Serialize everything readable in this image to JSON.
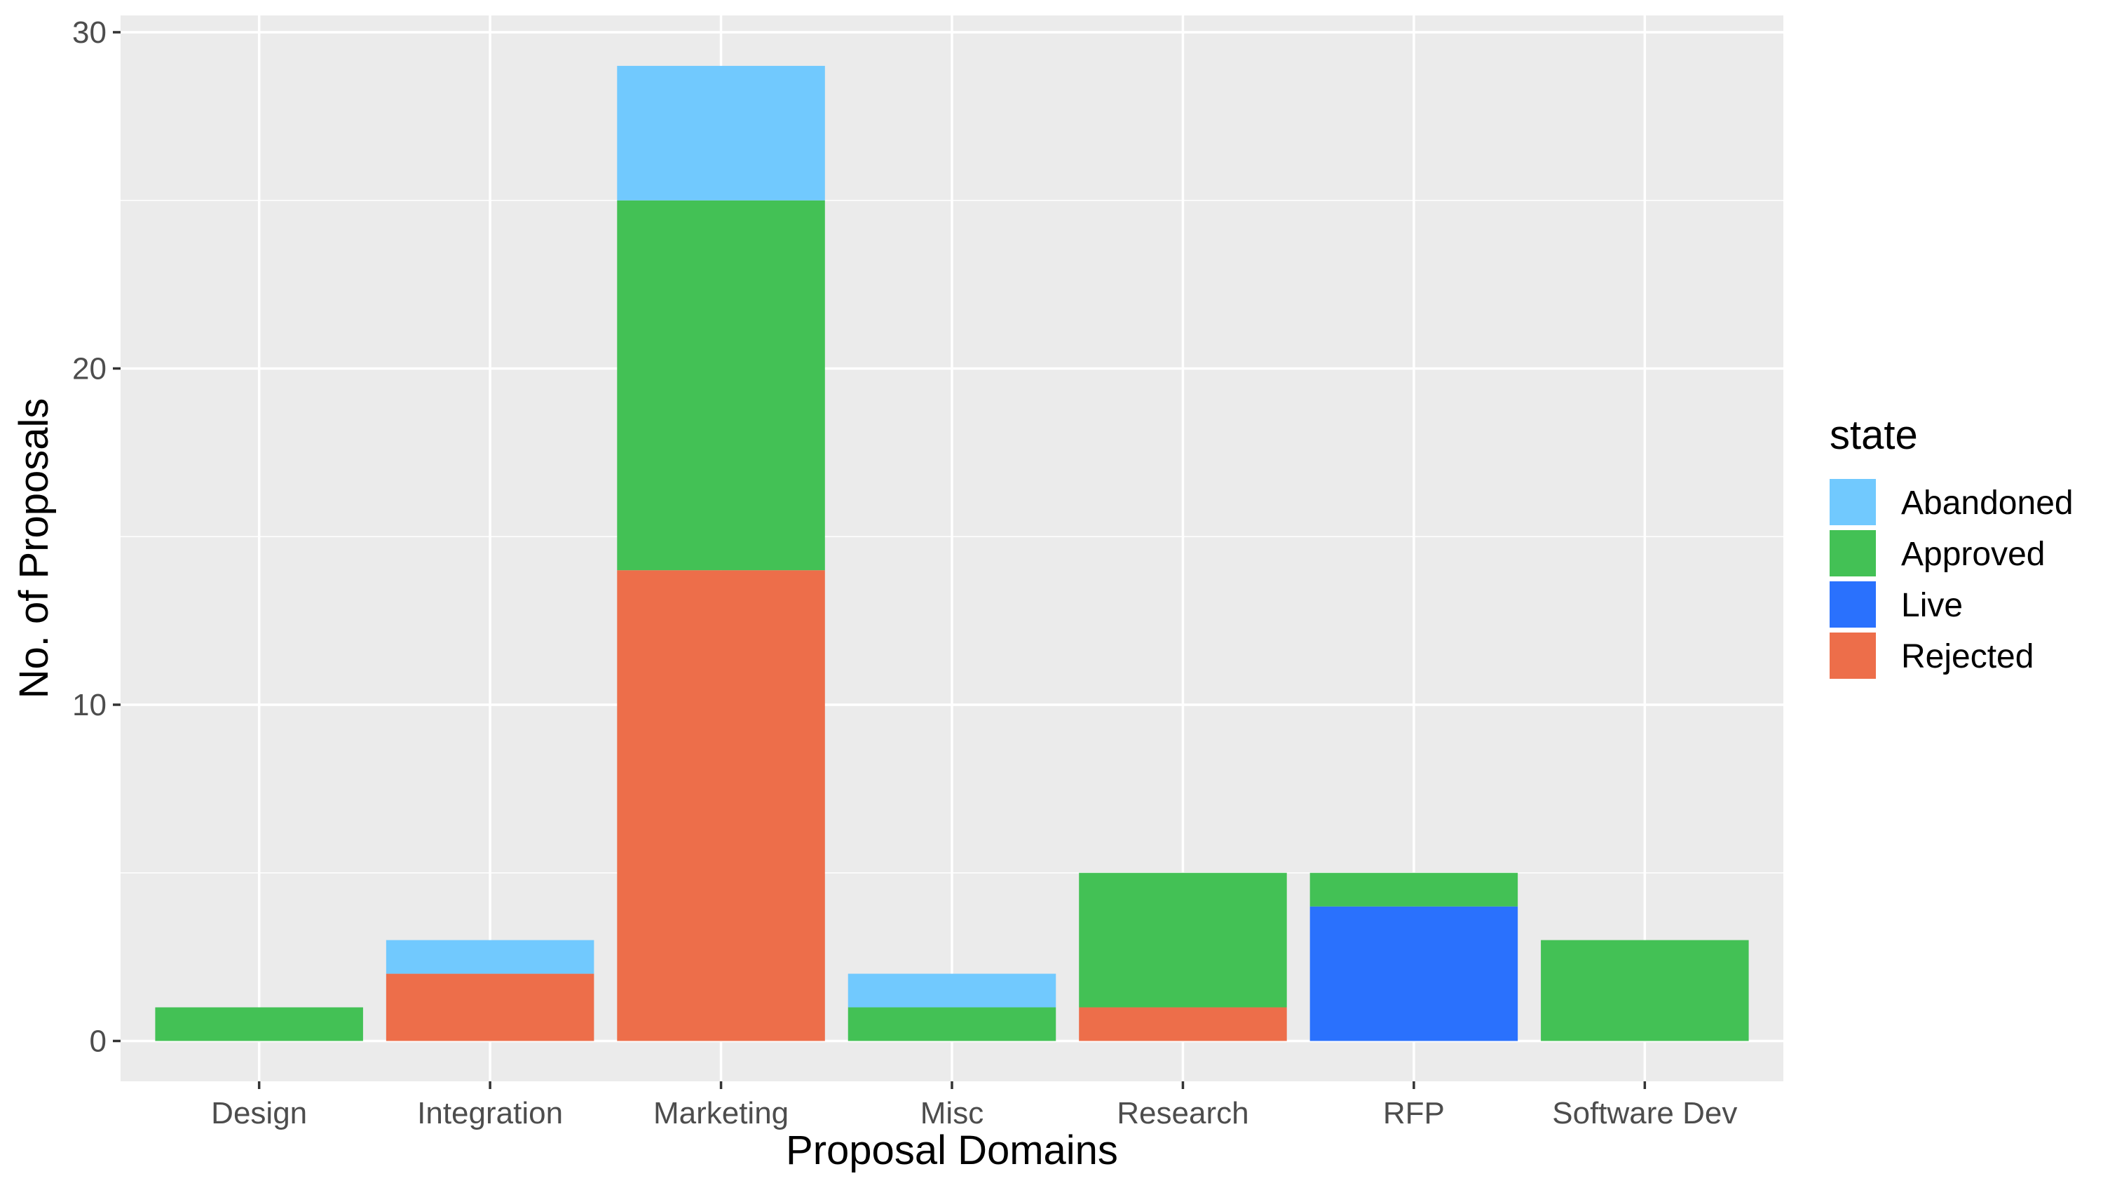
{
  "chart_data": {
    "type": "bar",
    "stacked": true,
    "xlabel": "Proposal Domains",
    "ylabel": "No. of Proposals",
    "ylim": [
      -1.2,
      30.5
    ],
    "yticks": [
      "0",
      "10",
      "20",
      "30"
    ],
    "categories": [
      "Design",
      "Integration",
      "Marketing",
      "Misc",
      "Research",
      "RFP",
      "Software Dev"
    ],
    "series": [
      {
        "name": "Rejected",
        "color": "#ed6e4a",
        "values": [
          0,
          2,
          14,
          0,
          1,
          0,
          0
        ]
      },
      {
        "name": "Live",
        "color": "#2a71fd",
        "values": [
          0,
          0,
          0,
          0,
          0,
          4,
          0
        ]
      },
      {
        "name": "Approved",
        "color": "#43c155",
        "values": [
          1,
          0,
          11,
          1,
          4,
          1,
          3
        ]
      },
      {
        "name": "Abandoned",
        "color": "#71c9fe",
        "values": [
          0,
          1,
          4,
          1,
          0,
          0,
          0
        ]
      }
    ],
    "legend": {
      "title": "state",
      "position": "right",
      "order": [
        "Abandoned",
        "Approved",
        "Live",
        "Rejected"
      ]
    },
    "grid": true,
    "panel_background": "#ebebeb",
    "grid_color": "#ffffff"
  }
}
